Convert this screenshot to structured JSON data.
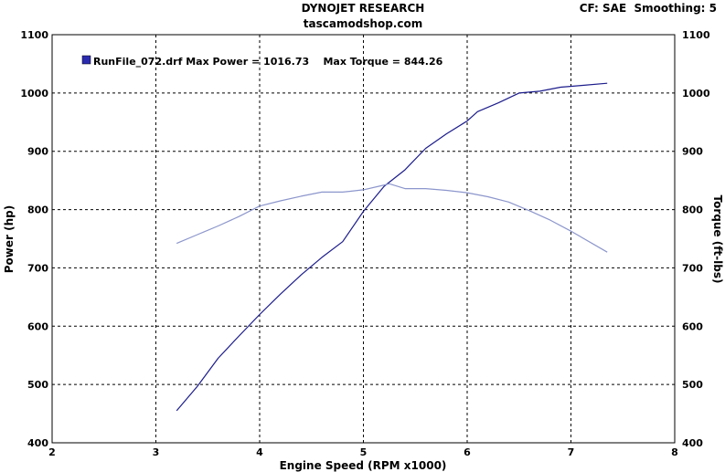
{
  "header": {
    "title": "DYNOJET RESEARCH",
    "subtitle": "tascamodshop.com",
    "settings": "CF: SAE  Smoothing: 5"
  },
  "legend": {
    "text": "RunFile_072.drf Max Power = 1016.73    Max Torque = 844.26",
    "swatch_color": "#2b2bb0"
  },
  "chart_data": {
    "type": "line",
    "title": "DYNOJET RESEARCH",
    "subtitle": "tascamodshop.com",
    "xlabel": "Engine Speed (RPM x1000)",
    "ylabel_left": "Power (hp)",
    "ylabel_right": "Torque (ft-lbs)",
    "xlim": [
      2,
      8
    ],
    "ylim": [
      400,
      1100
    ],
    "x_ticks": [
      "2",
      "3",
      "4",
      "5",
      "6",
      "7",
      "8"
    ],
    "y_ticks": [
      "400",
      "500",
      "600",
      "700",
      "800",
      "900",
      "1000",
      "1100"
    ],
    "grid": true,
    "legend_position": "top-left",
    "series": [
      {
        "name": "RunFile_072.drf Max Power = 1016.73",
        "axis": "left",
        "color": "#1c1c8c",
        "points": [
          [
            3.2,
            455
          ],
          [
            3.4,
            497
          ],
          [
            3.6,
            545
          ],
          [
            3.8,
            583
          ],
          [
            4.0,
            620
          ],
          [
            4.2,
            655
          ],
          [
            4.4,
            688
          ],
          [
            4.6,
            718
          ],
          [
            4.8,
            745
          ],
          [
            5.0,
            797
          ],
          [
            5.2,
            840
          ],
          [
            5.4,
            868
          ],
          [
            5.6,
            905
          ],
          [
            5.8,
            930
          ],
          [
            6.0,
            952
          ],
          [
            6.1,
            968
          ],
          [
            6.3,
            983
          ],
          [
            6.5,
            1000
          ],
          [
            6.7,
            1003
          ],
          [
            6.9,
            1010
          ],
          [
            7.1,
            1013
          ],
          [
            7.35,
            1016.73
          ]
        ]
      },
      {
        "name": "Max Torque = 844.26",
        "axis": "right",
        "color": "#8c96cc",
        "points": [
          [
            3.2,
            742
          ],
          [
            3.4,
            757
          ],
          [
            3.6,
            772
          ],
          [
            3.8,
            788
          ],
          [
            4.0,
            806
          ],
          [
            4.2,
            815
          ],
          [
            4.4,
            823
          ],
          [
            4.6,
            830
          ],
          [
            4.8,
            830
          ],
          [
            5.0,
            834
          ],
          [
            5.15,
            840
          ],
          [
            5.25,
            844.26
          ],
          [
            5.4,
            836
          ],
          [
            5.6,
            836
          ],
          [
            5.8,
            833
          ],
          [
            6.0,
            829
          ],
          [
            6.2,
            822
          ],
          [
            6.4,
            813
          ],
          [
            6.6,
            798
          ],
          [
            6.8,
            782
          ],
          [
            7.0,
            763
          ],
          [
            7.35,
            727
          ]
        ]
      }
    ]
  }
}
